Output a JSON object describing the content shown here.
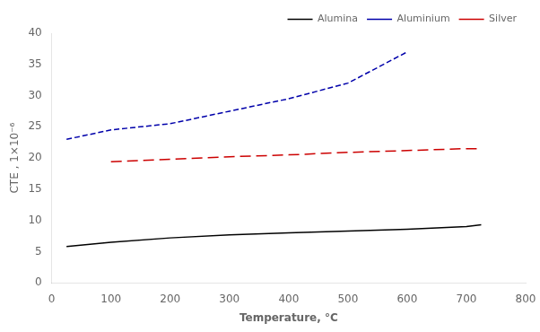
{
  "chart_data": {
    "type": "line",
    "xlabel": "Temperature, °C",
    "ylabel": "CTE , 1×10⁻⁶",
    "xlim": [
      0,
      800
    ],
    "ylim": [
      0,
      40
    ],
    "xticks": [
      0,
      100,
      200,
      300,
      400,
      500,
      600,
      700,
      800
    ],
    "yticks": [
      0,
      5,
      10,
      15,
      20,
      25,
      30,
      35,
      40
    ],
    "grid": false,
    "legend": "upper right",
    "series": [
      {
        "name": "Alumina",
        "color": "#000000",
        "line_style": "solid",
        "x": [
          25,
          100,
          200,
          300,
          400,
          500,
          600,
          700,
          725
        ],
        "values": [
          5.8,
          6.5,
          7.2,
          7.7,
          8.0,
          8.3,
          8.6,
          9.0,
          9.3
        ]
      },
      {
        "name": "Aluminium",
        "color": "#0000aa",
        "line_style": "dashed",
        "x": [
          25,
          100,
          200,
          300,
          400,
          500,
          600
        ],
        "values": [
          23.0,
          24.5,
          25.5,
          27.5,
          29.5,
          32.0,
          37.0
        ]
      },
      {
        "name": "Silver",
        "color": "#cc0000",
        "line_style": "longdash",
        "x": [
          100,
          200,
          300,
          400,
          500,
          600,
          700,
          725
        ],
        "values": [
          19.4,
          19.8,
          20.2,
          20.5,
          20.9,
          21.2,
          21.5,
          21.5
        ]
      }
    ]
  }
}
